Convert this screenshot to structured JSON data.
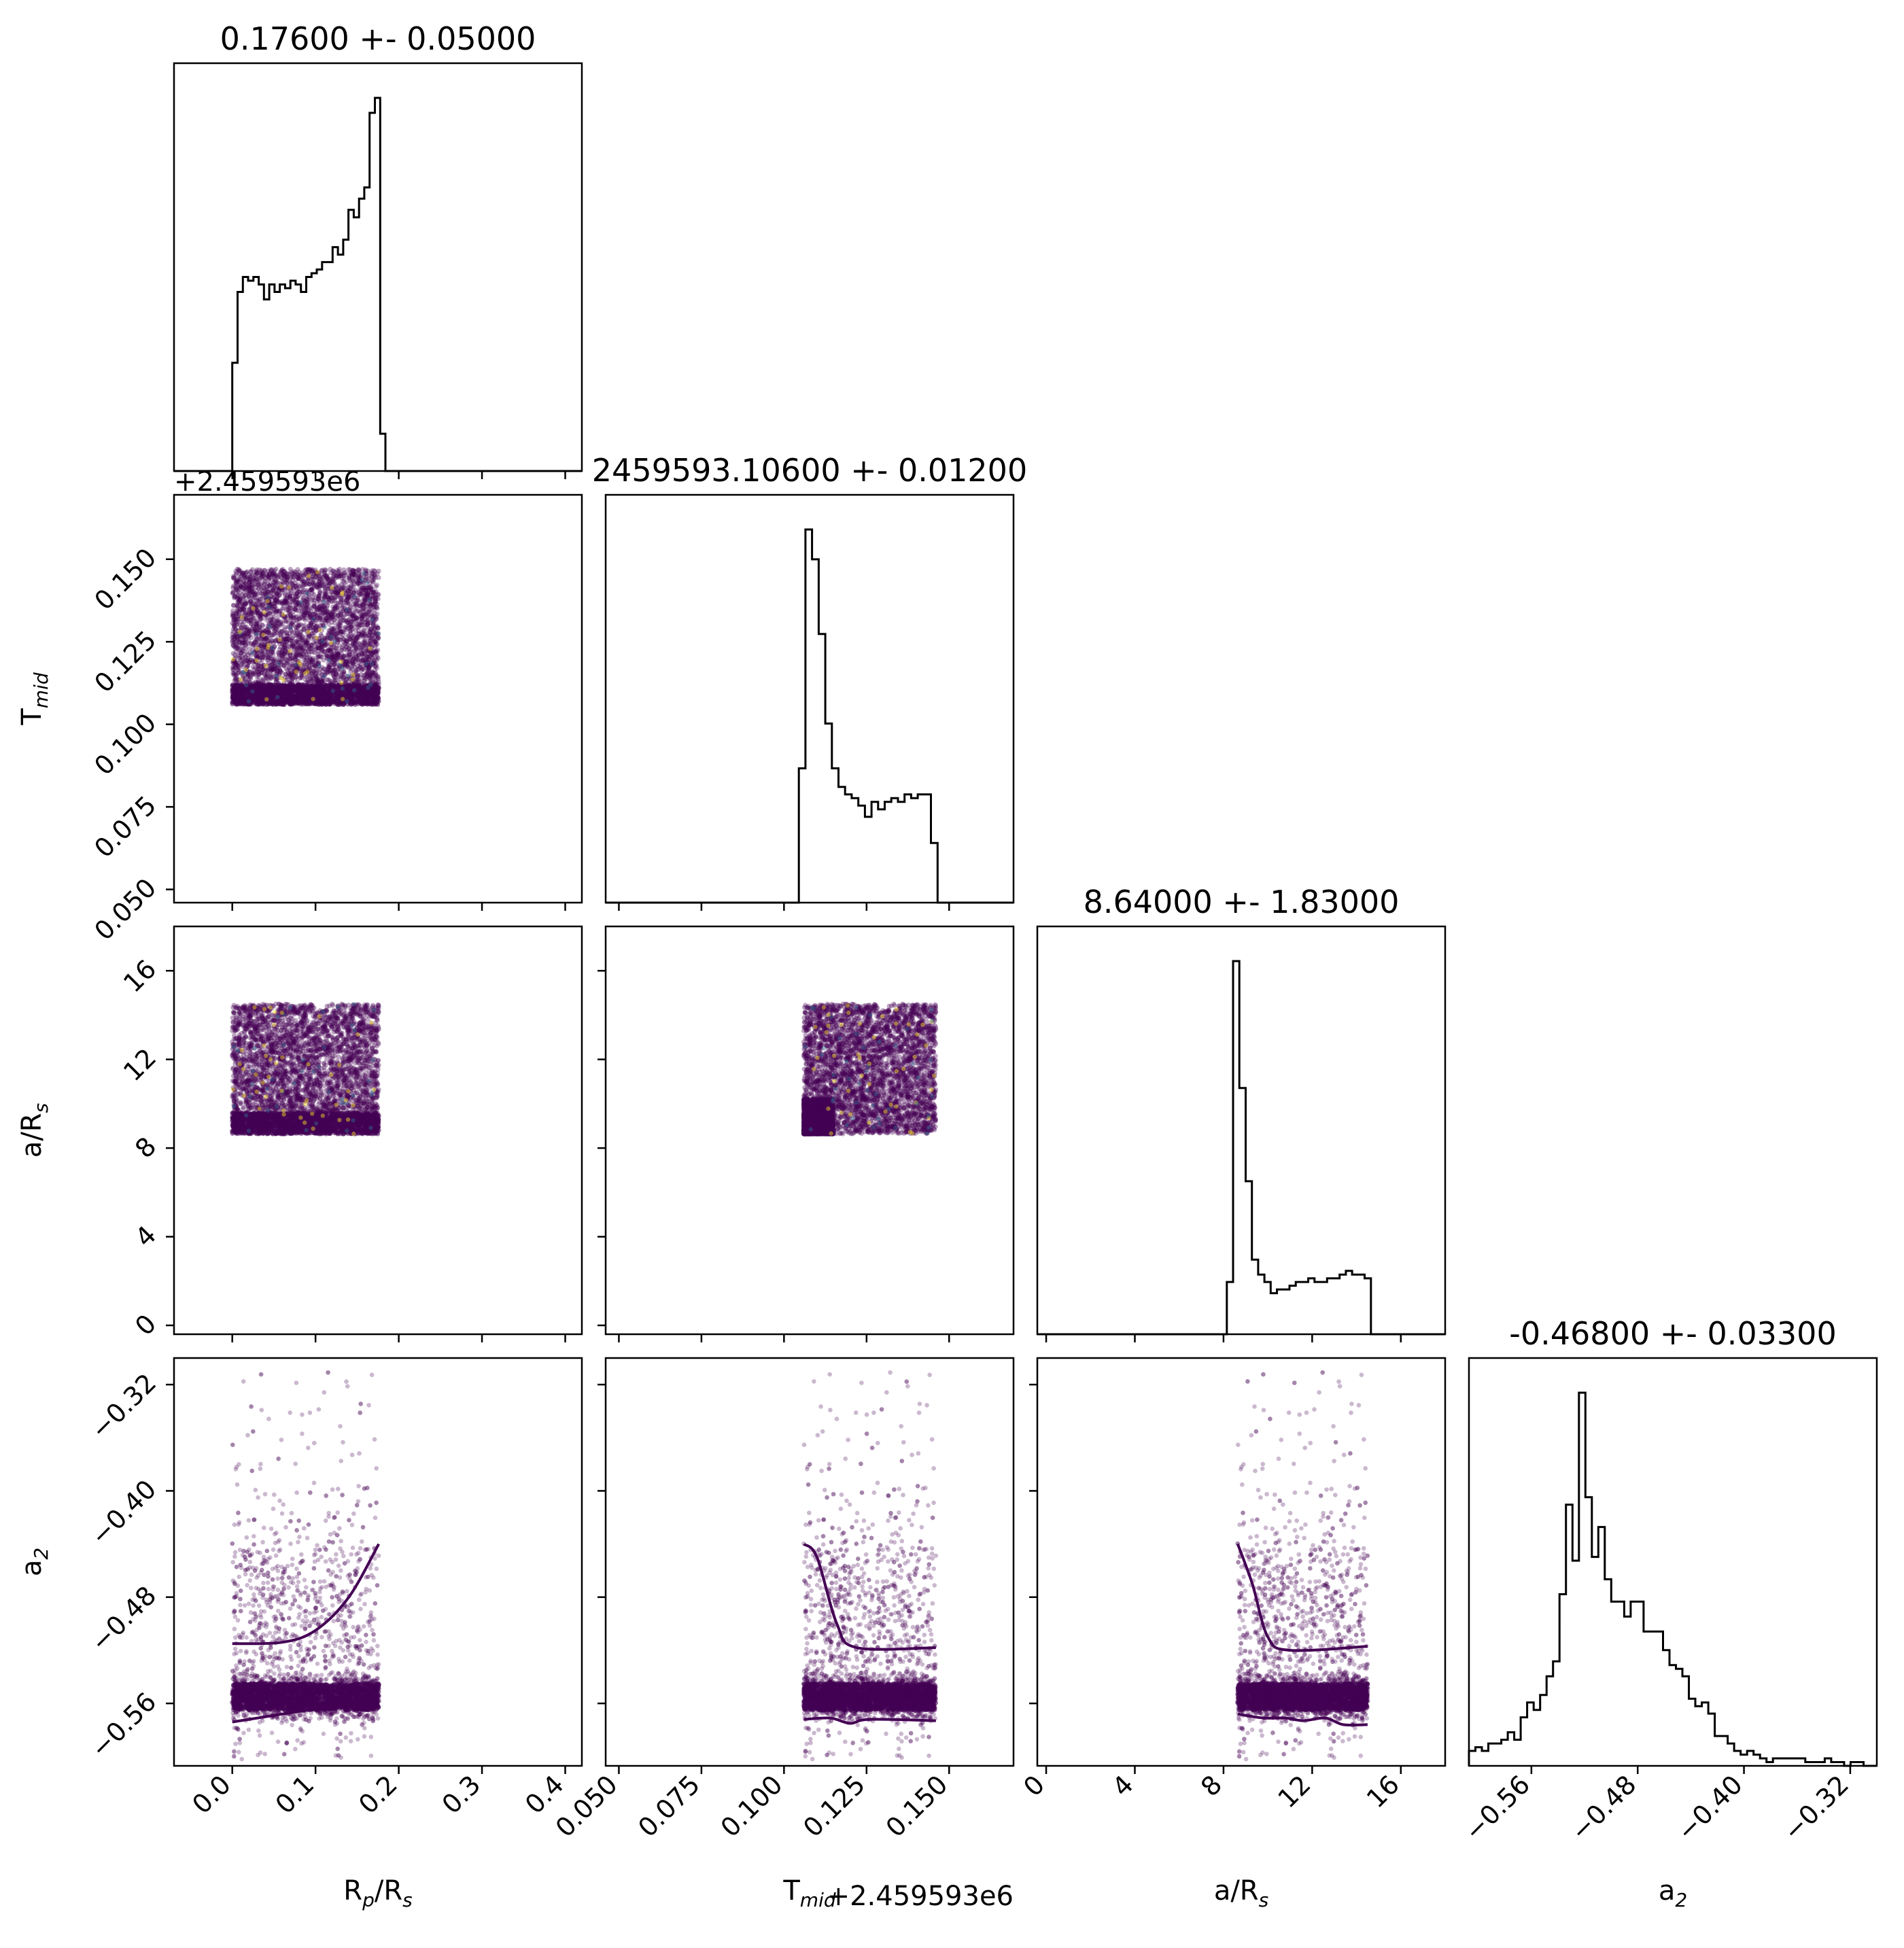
{
  "chart_data": {
    "type": "corner",
    "parameters": [
      {
        "key": "rp",
        "label": "R",
        "label_sub": "p",
        "label_mid": "/R",
        "label_sub2": "s",
        "range": [
          -0.07,
          0.42
        ],
        "ticks": [
          0.0,
          0.1,
          0.2,
          0.3,
          0.4
        ],
        "tick_labels": [
          "0.0",
          "0.1",
          "0.2",
          "0.3",
          "0.4"
        ],
        "offset_label": ""
      },
      {
        "key": "tmid",
        "label": "T",
        "label_sub": "mid",
        "label_mid": "",
        "label_sub2": "",
        "range": [
          0.046,
          0.1695
        ],
        "ticks": [
          0.05,
          0.075,
          0.1,
          0.125,
          0.15
        ],
        "tick_labels": [
          "0.050",
          "0.075",
          "0.100",
          "0.125",
          "0.150"
        ],
        "offset_label": "+2.459593e6"
      },
      {
        "key": "ars",
        "label": "a/R",
        "label_sub": "s",
        "label_mid": "",
        "label_sub2": "",
        "range": [
          -0.4,
          18.0
        ],
        "ticks": [
          0,
          4,
          8,
          12,
          16
        ],
        "tick_labels": [
          "0",
          "4",
          "8",
          "12",
          "16"
        ],
        "offset_label": ""
      },
      {
        "key": "a2",
        "label": "a",
        "label_sub": "2",
        "label_mid": "",
        "label_sub2": "",
        "range": [
          -0.607,
          -0.3
        ],
        "ticks": [
          -0.56,
          -0.48,
          -0.4,
          -0.32
        ],
        "tick_labels": [
          "−0.56",
          "−0.48",
          "−0.40",
          "−0.32"
        ],
        "offset_label": ""
      }
    ],
    "titles": [
      "0.17600 +- 0.05000",
      "2459593.10600 +- 0.01200",
      "8.64000 +- 1.83000",
      "-0.46800 +- 0.03300"
    ],
    "top_offset_label": "+2.459593e6",
    "histograms": [
      {
        "x0": 0.0,
        "x1": 0.184,
        "counts": [
          0.29,
          0.48,
          0.52,
          0.51,
          0.52,
          0.5,
          0.46,
          0.5,
          0.48,
          0.5,
          0.49,
          0.51,
          0.5,
          0.48,
          0.52,
          0.53,
          0.54,
          0.56,
          0.56,
          0.6,
          0.58,
          0.62,
          0.7,
          0.68,
          0.73,
          0.76,
          0.96,
          1.0,
          0.1
        ]
      },
      {
        "x0": 0.1045,
        "x1": 0.1465,
        "counts": [
          0.36,
          1.0,
          0.92,
          0.72,
          0.48,
          0.36,
          0.31,
          0.29,
          0.28,
          0.26,
          0.23,
          0.27,
          0.25,
          0.27,
          0.28,
          0.27,
          0.29,
          0.28,
          0.29,
          0.29,
          0.16
        ]
      },
      {
        "x0": 8.15,
        "x1": 14.65,
        "counts": [
          0.14,
          1.0,
          0.66,
          0.41,
          0.2,
          0.16,
          0.14,
          0.11,
          0.12,
          0.12,
          0.13,
          0.14,
          0.14,
          0.15,
          0.14,
          0.14,
          0.15,
          0.15,
          0.16,
          0.17,
          0.16,
          0.16,
          0.15
        ]
      },
      {
        "x0": -0.607,
        "x1": -0.31,
        "counts": [
          0.04,
          0.05,
          0.04,
          0.06,
          0.06,
          0.07,
          0.09,
          0.07,
          0.13,
          0.17,
          0.15,
          0.19,
          0.24,
          0.28,
          0.46,
          0.7,
          0.55,
          1.0,
          0.72,
          0.56,
          0.64,
          0.5,
          0.44,
          0.44,
          0.4,
          0.44,
          0.44,
          0.36,
          0.36,
          0.36,
          0.31,
          0.27,
          0.26,
          0.24,
          0.18,
          0.16,
          0.17,
          0.14,
          0.08,
          0.08,
          0.06,
          0.04,
          0.03,
          0.04,
          0.03,
          0.02,
          0.01,
          0.02,
          0.02,
          0.02,
          0.02,
          0.02,
          0.01,
          0.01,
          0.01,
          0.02,
          0.01,
          0.01,
          0.0,
          0.01,
          0.01
        ]
      }
    ],
    "scatter_regions": [
      {
        "row": 1,
        "col": 0,
        "x": [
          0.0,
          0.176
        ],
        "y": [
          0.106,
          0.147
        ],
        "dense_y": [
          0.106,
          0.112
        ]
      },
      {
        "row": 2,
        "col": 0,
        "x": [
          0.0,
          0.176
        ],
        "y": [
          8.64,
          14.5
        ],
        "dense_y": [
          8.64,
          9.6
        ]
      },
      {
        "row": 2,
        "col": 1,
        "x": [
          0.106,
          0.146
        ],
        "y": [
          8.64,
          14.5
        ],
        "dense_x": [
          0.106,
          0.115
        ]
      },
      {
        "row": 3,
        "col": 0,
        "x": [
          0.0,
          0.176
        ],
        "y": [
          -0.6,
          -0.31
        ],
        "dense_y": [
          -0.565,
          -0.545
        ]
      },
      {
        "row": 3,
        "col": 1,
        "x": [
          0.106,
          0.146
        ],
        "y": [
          -0.6,
          -0.31
        ],
        "dense_y": [
          -0.565,
          -0.545
        ]
      },
      {
        "row": 3,
        "col": 2,
        "x": [
          8.64,
          14.5
        ],
        "y": [
          -0.6,
          -0.31
        ],
        "dense_y": [
          -0.565,
          -0.545
        ]
      }
    ],
    "band_curves": [
      {
        "row": 3,
        "col": 0,
        "upper": [
          [
            0.0,
            -0.515
          ],
          [
            0.06,
            -0.514
          ],
          [
            0.1,
            -0.505
          ],
          [
            0.14,
            -0.48
          ],
          [
            0.176,
            -0.44
          ]
        ],
        "lower": [
          [
            0.0,
            -0.574
          ],
          [
            0.06,
            -0.568
          ],
          [
            0.12,
            -0.562
          ],
          [
            0.176,
            -0.555
          ]
        ]
      },
      {
        "row": 3,
        "col": 1,
        "upper": [
          [
            0.106,
            -0.44
          ],
          [
            0.11,
            -0.45
          ],
          [
            0.116,
            -0.5
          ],
          [
            0.122,
            -0.518
          ],
          [
            0.146,
            -0.518
          ]
        ],
        "lower": [
          [
            0.106,
            -0.572
          ],
          [
            0.114,
            -0.571
          ],
          [
            0.12,
            -0.575
          ],
          [
            0.126,
            -0.572
          ],
          [
            0.146,
            -0.573
          ]
        ]
      },
      {
        "row": 3,
        "col": 2,
        "upper": [
          [
            8.64,
            -0.44
          ],
          [
            9.3,
            -0.47
          ],
          [
            10.0,
            -0.51
          ],
          [
            11.0,
            -0.52
          ],
          [
            14.5,
            -0.517
          ]
        ],
        "lower": [
          [
            8.64,
            -0.568
          ],
          [
            9.8,
            -0.571
          ],
          [
            10.8,
            -0.571
          ],
          [
            11.6,
            -0.573
          ],
          [
            12.6,
            -0.571
          ],
          [
            13.4,
            -0.576
          ],
          [
            14.5,
            -0.576
          ]
        ]
      }
    ],
    "colors": {
      "hist": "#000000",
      "scatter": "#440154",
      "highlight": "#fde725",
      "mid": "#31688e",
      "band": "#440154"
    }
  }
}
